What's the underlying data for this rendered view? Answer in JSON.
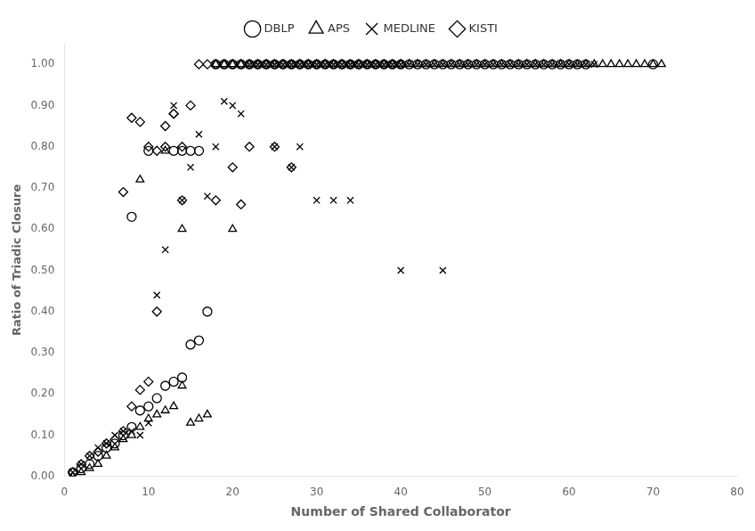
{
  "chart_data": {
    "type": "scatter",
    "xlabel": "Number of Shared Collaborator",
    "ylabel": "Ratio of Triadic Closure",
    "xlim": [
      0,
      80
    ],
    "ylim": [
      0.0,
      1.05
    ],
    "xticks": [
      0,
      10,
      20,
      30,
      40,
      50,
      60,
      70,
      80
    ],
    "yticks": [
      {
        "value": 0.0,
        "label": "0.00"
      },
      {
        "value": 0.1,
        "label": "0.10"
      },
      {
        "value": 0.2,
        "label": "0.20"
      },
      {
        "value": 0.3,
        "label": "0.30"
      },
      {
        "value": 0.4,
        "label": "0.40"
      },
      {
        "value": 0.5,
        "label": "0.50"
      },
      {
        "value": 0.6,
        "label": "0.60"
      },
      {
        "value": 0.7,
        "label": "0.70"
      },
      {
        "value": 0.8,
        "label": "0.80"
      },
      {
        "value": 0.9,
        "label": "0.90"
      },
      {
        "value": 1.0,
        "label": "1.00"
      }
    ],
    "grid": false,
    "legend": "top",
    "series": [
      {
        "name": "DBLP",
        "color": "black",
        "marker": "circle",
        "x": [
          1,
          2,
          3,
          4,
          5,
          6,
          7,
          8,
          9,
          10,
          11,
          12,
          13,
          14,
          15,
          16,
          17,
          8,
          10,
          13,
          14,
          15,
          16,
          18,
          19,
          20,
          21,
          22,
          23,
          24,
          25,
          26,
          27,
          28,
          29,
          30,
          31,
          32,
          33,
          34,
          35,
          36,
          37,
          38,
          39,
          40,
          41,
          42,
          43,
          44,
          45,
          46,
          47,
          48,
          49,
          50,
          51,
          52,
          53,
          54,
          55,
          56,
          57,
          58,
          59,
          60,
          61,
          62,
          70
        ],
        "values": [
          0.01,
          0.02,
          0.03,
          0.05,
          0.07,
          0.08,
          0.1,
          0.12,
          0.16,
          0.17,
          0.19,
          0.22,
          0.23,
          0.24,
          0.32,
          0.33,
          0.4,
          0.63,
          0.79,
          0.79,
          0.79,
          0.79,
          0.79,
          1.0,
          1.0,
          1.0,
          1.0,
          1.0,
          1.0,
          1.0,
          1.0,
          1.0,
          1.0,
          1.0,
          1.0,
          1.0,
          1.0,
          1.0,
          1.0,
          1.0,
          1.0,
          1.0,
          1.0,
          1.0,
          1.0,
          1.0,
          1.0,
          1.0,
          1.0,
          1.0,
          1.0,
          1.0,
          1.0,
          1.0,
          1.0,
          1.0,
          1.0,
          1.0,
          1.0,
          1.0,
          1.0,
          1.0,
          1.0,
          1.0,
          1.0,
          1.0,
          1.0,
          1.0,
          1.0
        ]
      },
      {
        "name": "APS",
        "color": "black",
        "marker": "triangle",
        "x": [
          1,
          2,
          3,
          4,
          5,
          6,
          7,
          8,
          9,
          10,
          11,
          12,
          13,
          14,
          15,
          16,
          17,
          9,
          12,
          14,
          20,
          18,
          19,
          20,
          21,
          22,
          23,
          24,
          25,
          26,
          27,
          28,
          29,
          30,
          31,
          32,
          33,
          34,
          35,
          36,
          37,
          38,
          39,
          40,
          41,
          42,
          43,
          44,
          45,
          46,
          47,
          48,
          49,
          50,
          51,
          52,
          53,
          54,
          55,
          56,
          57,
          58,
          59,
          60,
          61,
          62,
          63,
          64,
          65,
          66,
          67,
          68,
          69,
          70,
          71
        ],
        "values": [
          0.0,
          0.01,
          0.02,
          0.03,
          0.05,
          0.07,
          0.09,
          0.1,
          0.12,
          0.14,
          0.15,
          0.16,
          0.17,
          0.22,
          0.13,
          0.14,
          0.15,
          0.72,
          0.79,
          0.6,
          0.6,
          1.0,
          1.0,
          1.0,
          1.0,
          1.0,
          1.0,
          1.0,
          1.0,
          1.0,
          1.0,
          1.0,
          1.0,
          1.0,
          1.0,
          1.0,
          1.0,
          1.0,
          1.0,
          1.0,
          1.0,
          1.0,
          1.0,
          1.0,
          1.0,
          1.0,
          1.0,
          1.0,
          1.0,
          1.0,
          1.0,
          1.0,
          1.0,
          1.0,
          1.0,
          1.0,
          1.0,
          1.0,
          1.0,
          1.0,
          1.0,
          1.0,
          1.0,
          1.0,
          1.0,
          1.0,
          1.0,
          1.0,
          1.0,
          1.0,
          1.0,
          1.0,
          1.0,
          1.0,
          1.0
        ]
      },
      {
        "name": "MEDLINE",
        "color": "black",
        "marker": "x",
        "x": [
          1,
          2,
          3,
          4,
          5,
          6,
          7,
          8,
          9,
          10,
          11,
          12,
          13,
          14,
          15,
          16,
          17,
          18,
          19,
          20,
          21,
          22,
          23,
          24,
          25,
          26,
          27,
          28,
          29,
          30,
          31,
          32,
          33,
          34,
          35,
          36,
          37,
          38,
          39,
          40,
          41,
          42,
          43,
          44,
          45,
          46,
          47,
          48,
          49,
          50,
          51,
          52,
          53,
          54,
          55,
          56,
          57,
          58,
          59,
          60,
          61,
          62,
          63,
          25,
          27,
          28,
          30,
          32,
          34,
          40,
          45
        ],
        "values": [
          0.01,
          0.03,
          0.05,
          0.07,
          0.08,
          0.1,
          0.11,
          0.11,
          0.1,
          0.13,
          0.44,
          0.55,
          0.9,
          0.67,
          0.75,
          0.83,
          0.68,
          0.8,
          0.91,
          0.9,
          0.88,
          1.0,
          1.0,
          1.0,
          1.0,
          1.0,
          1.0,
          1.0,
          1.0,
          1.0,
          1.0,
          1.0,
          1.0,
          1.0,
          1.0,
          1.0,
          1.0,
          1.0,
          1.0,
          1.0,
          1.0,
          1.0,
          1.0,
          1.0,
          1.0,
          1.0,
          1.0,
          1.0,
          1.0,
          1.0,
          1.0,
          1.0,
          1.0,
          1.0,
          1.0,
          1.0,
          1.0,
          1.0,
          1.0,
          1.0,
          1.0,
          1.0,
          1.0,
          0.8,
          0.75,
          0.8,
          0.67,
          0.67,
          0.67,
          0.5,
          0.5
        ]
      },
      {
        "name": "KISTI",
        "color": "black",
        "marker": "diamond",
        "x": [
          1,
          2,
          3,
          4,
          5,
          6,
          7,
          8,
          9,
          10,
          11,
          12,
          13,
          14,
          15,
          16,
          17,
          18,
          19,
          20,
          21,
          22,
          23,
          24,
          25,
          26,
          27,
          28,
          29,
          30,
          31,
          32,
          33,
          34,
          35,
          36,
          37,
          38,
          39,
          40,
          7,
          8,
          9,
          10,
          11,
          12,
          13,
          14,
          18,
          20,
          21,
          22,
          25,
          27
        ],
        "values": [
          0.01,
          0.03,
          0.05,
          0.06,
          0.08,
          0.09,
          0.11,
          0.17,
          0.21,
          0.23,
          0.4,
          0.8,
          0.88,
          0.8,
          0.9,
          1.0,
          1.0,
          1.0,
          1.0,
          1.0,
          1.0,
          1.0,
          1.0,
          1.0,
          1.0,
          1.0,
          1.0,
          1.0,
          1.0,
          1.0,
          1.0,
          1.0,
          1.0,
          1.0,
          1.0,
          1.0,
          1.0,
          1.0,
          1.0,
          1.0,
          0.69,
          0.87,
          0.86,
          0.8,
          0.79,
          0.85,
          0.88,
          0.67,
          0.67,
          0.75,
          0.66,
          0.8,
          0.8,
          0.75
        ]
      }
    ]
  }
}
